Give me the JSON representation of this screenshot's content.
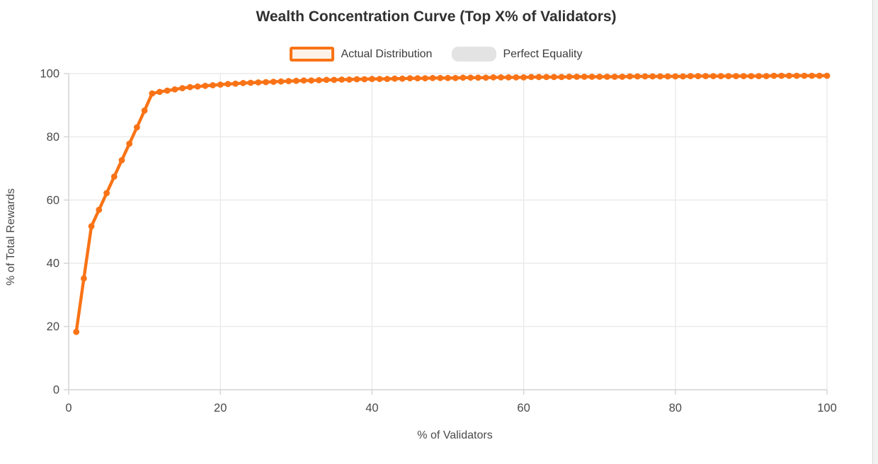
{
  "chart_data": {
    "type": "line",
    "title": "Wealth Concentration Curve (Top X% of Validators)",
    "xlabel": "% of Validators",
    "ylabel": "% of Total Rewards",
    "xlim": [
      0,
      100
    ],
    "ylim": [
      0,
      100
    ],
    "x_ticks": [
      0,
      20,
      40,
      60,
      80,
      100
    ],
    "y_ticks": [
      0,
      20,
      40,
      60,
      80,
      100
    ],
    "grid": true,
    "legend_position": "top",
    "series": [
      {
        "name": "Actual Distribution",
        "color": "#f97316",
        "marker_fill": "#fdf2e9",
        "point_style": "circle",
        "hidden": false,
        "x_start": 1,
        "x_step": 1,
        "values": [
          18.3,
          35.2,
          51.7,
          56.9,
          62.2,
          67.4,
          72.6,
          77.8,
          83.0,
          88.3,
          93.7,
          94.2,
          94.6,
          95.0,
          95.4,
          95.7,
          95.9,
          96.1,
          96.3,
          96.5,
          96.7,
          96.8,
          97.0,
          97.1,
          97.2,
          97.3,
          97.4,
          97.5,
          97.6,
          97.7,
          97.8,
          97.8,
          97.9,
          98.0,
          98.0,
          98.1,
          98.1,
          98.2,
          98.2,
          98.3,
          98.3,
          98.3,
          98.4,
          98.4,
          98.5,
          98.5,
          98.5,
          98.6,
          98.6,
          98.6,
          98.6,
          98.7,
          98.7,
          98.7,
          98.7,
          98.8,
          98.8,
          98.8,
          98.8,
          98.8,
          98.9,
          98.9,
          98.9,
          98.9,
          98.9,
          99.0,
          99.0,
          99.0,
          99.0,
          99.0,
          99.0,
          99.0,
          99.0,
          99.1,
          99.1,
          99.1,
          99.1,
          99.1,
          99.1,
          99.1,
          99.1,
          99.2,
          99.2,
          99.2,
          99.2,
          99.2,
          99.2,
          99.2,
          99.2,
          99.2,
          99.2,
          99.2,
          99.3,
          99.3,
          99.3,
          99.3,
          99.3,
          99.3,
          99.3,
          99.3
        ]
      },
      {
        "name": "Perfect Equality",
        "color": "#e3e3e3",
        "hidden": true,
        "values": []
      }
    ],
    "colors": {
      "grid": "#eaeaea",
      "axis": "#d6d6d6",
      "tick_label": "#4a4a4a",
      "axis_title": "#4a4a4a",
      "title": "#303030"
    }
  }
}
